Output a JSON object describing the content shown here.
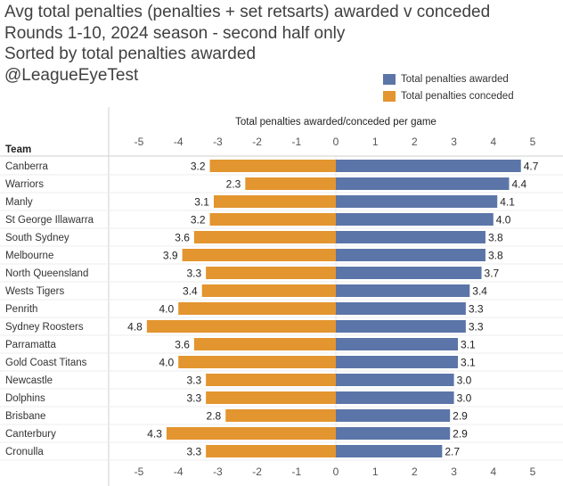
{
  "title_lines": [
    "Avg total penalties (penalties + set retsarts) awarded v conceded",
    "Rounds 1-10, 2024 season - second half only",
    "Sorted by total penalties awarded",
    "@LeagueEyeTest"
  ],
  "legend": [
    {
      "label": "Total penalties awarded",
      "color": "#5b75a8"
    },
    {
      "label": "Total penalties conceded",
      "color": "#e3952f"
    }
  ],
  "chart_data": {
    "type": "bar",
    "orientation": "horizontal-diverging",
    "xlabel": "Total penalties awarded/conceded per game",
    "ylabel": "Team",
    "xlim": [
      -5.5,
      5.3
    ],
    "ticks": [
      -5,
      -4,
      -3,
      -2,
      -1,
      0,
      1,
      2,
      3,
      4,
      5
    ],
    "tick_labels": [
      "-5",
      "-4",
      "-3",
      "-2",
      "-1",
      "0",
      "1",
      "2",
      "3",
      "4",
      "5"
    ],
    "categories": [
      "Canberra",
      "Warriors",
      "Manly",
      "St George Illawarra",
      "South Sydney",
      "Melbourne",
      "North Queensland",
      "Wests Tigers",
      "Penrith",
      "Sydney Roosters",
      "Parramatta",
      "Gold Coast Titans",
      "Newcastle",
      "Dolphins",
      "Brisbane",
      "Canterbury",
      "Cronulla"
    ],
    "series": [
      {
        "name": "Total penalties awarded",
        "color": "#5b75a8",
        "values": [
          4.7,
          4.4,
          4.1,
          4.0,
          3.8,
          3.8,
          3.7,
          3.4,
          3.3,
          3.3,
          3.1,
          3.1,
          3.0,
          3.0,
          2.9,
          2.9,
          2.7
        ]
      },
      {
        "name": "Total penalties conceded",
        "color": "#e3952f",
        "values": [
          3.2,
          2.3,
          3.1,
          3.2,
          3.6,
          3.9,
          3.3,
          3.4,
          4.0,
          4.8,
          3.6,
          4.0,
          3.3,
          3.3,
          2.8,
          4.3,
          3.3
        ]
      }
    ]
  }
}
